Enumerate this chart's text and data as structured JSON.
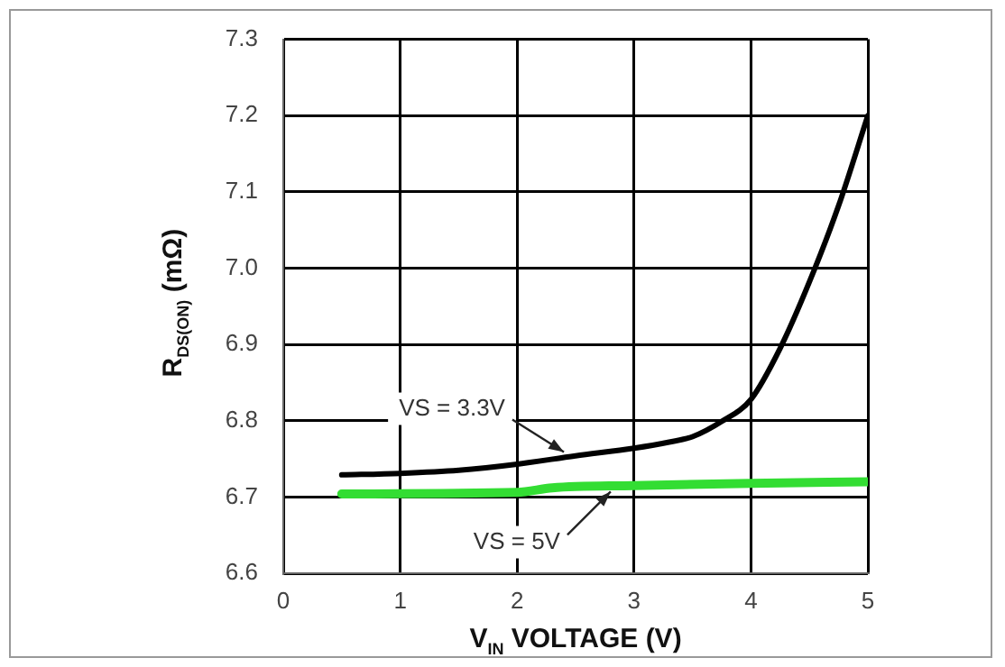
{
  "chart_data": {
    "type": "line",
    "xlabel": "V$_{IN}$ VOLTAGE (V)",
    "ylabel": "R$_{DS(ON)}$  (mΩ)",
    "series": [
      {
        "name": "VS = 3.3V",
        "color": "#000000",
        "x": [
          0.5,
          1,
          1.5,
          2,
          2.5,
          3,
          3.3,
          3.5,
          3.75,
          4,
          4.25,
          4.5,
          4.75,
          5
        ],
        "values": [
          6.729,
          6.731,
          6.735,
          6.743,
          6.754,
          6.764,
          6.772,
          6.779,
          6.799,
          6.828,
          6.895,
          6.982,
          7.082,
          7.2
        ]
      },
      {
        "name": "VS = 5V",
        "color": "#33dd33",
        "x": [
          0.5,
          2,
          2.3,
          3,
          4,
          5
        ],
        "values": [
          6.704,
          6.706,
          6.712,
          6.715,
          6.718,
          6.72
        ]
      }
    ],
    "xlim": [
      0,
      5
    ],
    "xticks": [
      0,
      1,
      2,
      3,
      4,
      5
    ],
    "ylim": [
      6.6,
      7.3
    ],
    "yticks": [
      {
        "value": 6.6,
        "label": "6.6"
      },
      {
        "value": 6.7,
        "label": "6.7"
      },
      {
        "value": 6.8,
        "label": "6.8"
      },
      {
        "value": 6.9,
        "label": "6.9"
      },
      {
        "value": 7.0,
        "label": "7.0"
      },
      {
        "value": 7.1,
        "label": "7.1"
      },
      {
        "value": 7.2,
        "label": "7.2"
      },
      {
        "value": 7.3,
        "label": "7.3"
      }
    ],
    "grid": true,
    "legend": false,
    "marker": "none",
    "line_style": "solid"
  }
}
